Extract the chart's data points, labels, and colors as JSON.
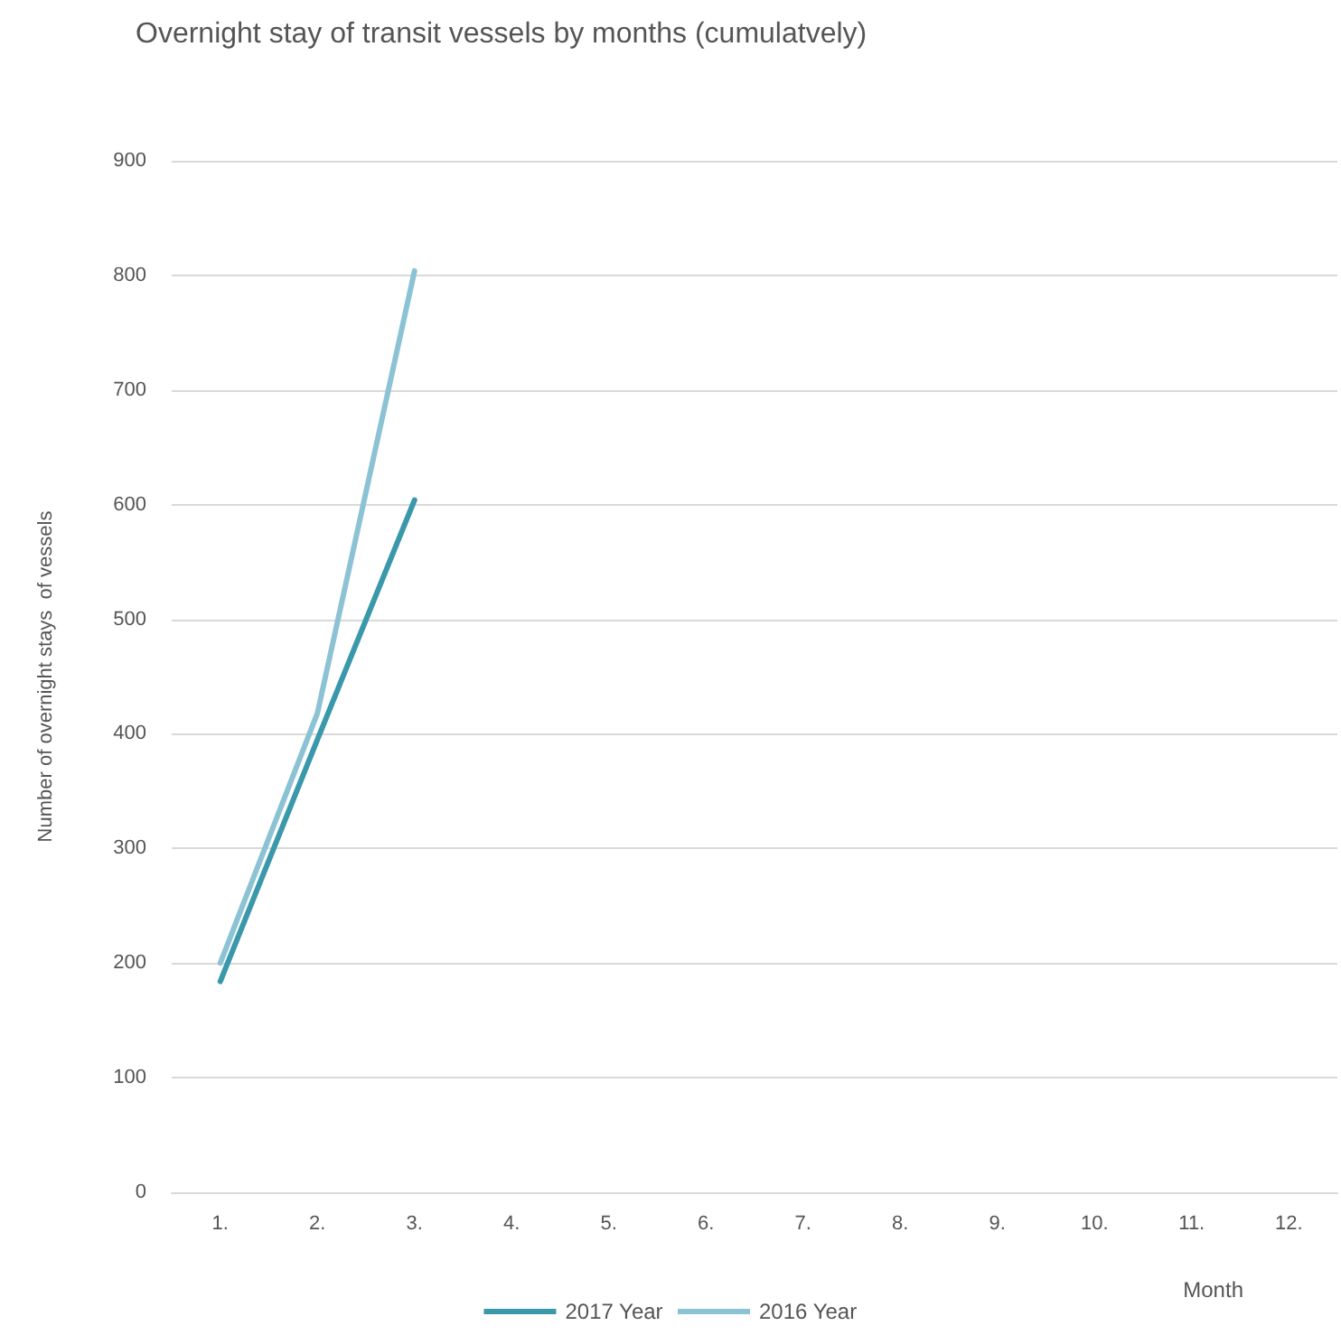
{
  "chart_data": {
    "type": "line",
    "title": "Overnight stay of transit vessels by months (cumulatvely)",
    "xlabel": "Month",
    "ylabel": "Number of overnight stays  of vessels",
    "categories": [
      "1.",
      "2.",
      "3.",
      "4.",
      "5.",
      "6.",
      "7.",
      "8.",
      "9.",
      "10.",
      "11.",
      "12."
    ],
    "series": [
      {
        "name": "2017 Year",
        "color": "#3a98ab",
        "values": [
          184,
          395,
          604,
          null,
          null,
          null,
          null,
          null,
          null,
          null,
          null,
          null
        ]
      },
      {
        "name": "2016 Year",
        "color": "#8cc3d4",
        "values": [
          200,
          418,
          804,
          null,
          null,
          null,
          null,
          null,
          null,
          null,
          null,
          null
        ]
      }
    ],
    "ylim": [
      0,
      900
    ],
    "yticks": [
      0,
      100,
      200,
      300,
      400,
      500,
      600,
      700,
      800,
      900
    ],
    "grid": "y",
    "legend": "bottom",
    "marker": "none",
    "line_style": "solid"
  }
}
